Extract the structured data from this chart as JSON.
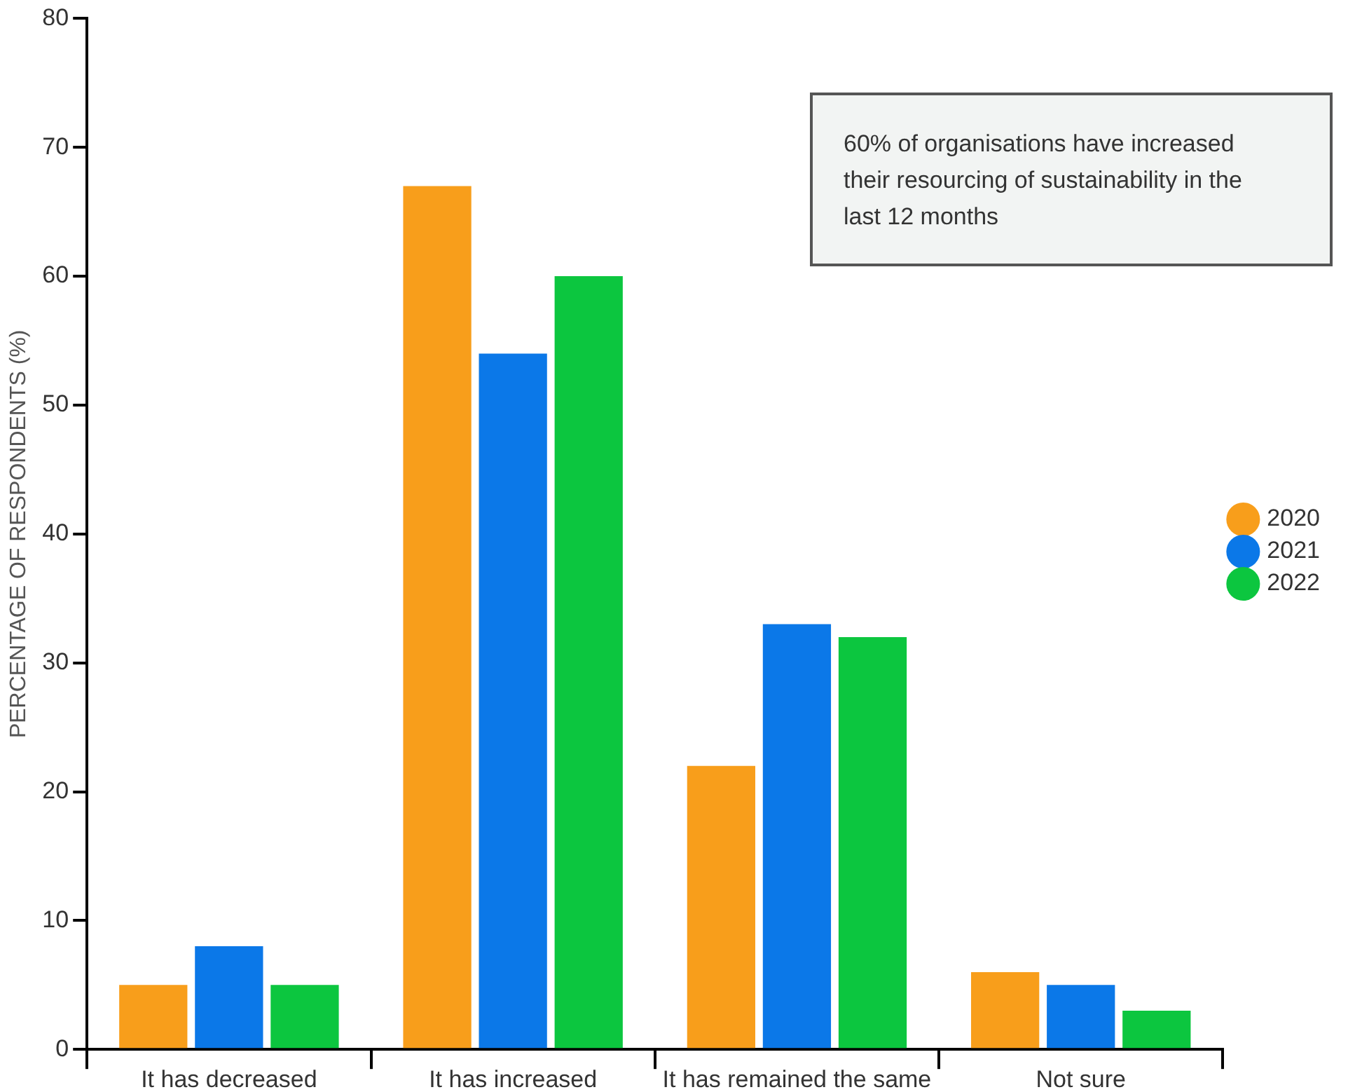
{
  "chart_data": {
    "type": "bar",
    "ylabel": "PERCENTAGE OF RESPONDENTS (%)",
    "categories": [
      "It has decreased",
      "It has increased",
      "It has remained the same",
      "Not sure"
    ],
    "series": [
      {
        "name": "2020",
        "color": "#f89e1b",
        "values": [
          5,
          67,
          22,
          6
        ]
      },
      {
        "name": "2021",
        "color": "#0b78e8",
        "values": [
          8,
          54,
          33,
          5
        ]
      },
      {
        "name": "2022",
        "color": "#0cc63f",
        "values": [
          5,
          60,
          32,
          3
        ]
      }
    ],
    "ylim": [
      0,
      80
    ],
    "yticks": [
      0,
      10,
      20,
      30,
      40,
      50,
      60,
      70,
      80
    ],
    "grid": false,
    "legend": "right",
    "annotations": [
      "60% of organisations have increased their resourcing of sustainability in the last 12 months"
    ]
  }
}
